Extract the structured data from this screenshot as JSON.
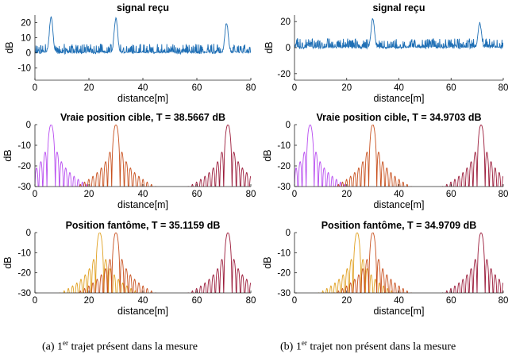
{
  "chart_data": [
    {
      "type": "line",
      "column": 0,
      "row": 0,
      "title": "signal reçu",
      "xlabel": "distance[m]",
      "ylabel": "dB",
      "xlim": [
        0,
        80
      ],
      "ylim": [
        -18,
        25
      ],
      "xticks": [
        0,
        20,
        40,
        60,
        80
      ],
      "yticks": [
        -10,
        0,
        10,
        20
      ],
      "peaks": [
        [
          6,
          24
        ],
        [
          30,
          23
        ],
        [
          71,
          20
        ]
      ],
      "noise_floor": 0,
      "noise_amplitude": 6,
      "series": [
        {
          "color": "#1f6fb5",
          "kind": "signal"
        }
      ]
    },
    {
      "type": "line",
      "column": 1,
      "row": 0,
      "title": "signal reçu",
      "xlabel": "distance[m]",
      "ylabel": "dB",
      "xlim": [
        0,
        80
      ],
      "ylim": [
        -25,
        25
      ],
      "xticks": [
        0,
        20,
        40,
        60,
        80
      ],
      "yticks": [
        -20,
        0,
        20
      ],
      "peaks": [
        [
          30,
          22
        ],
        [
          71,
          19
        ]
      ],
      "noise_floor": 0,
      "noise_amplitude": 7,
      "series": [
        {
          "color": "#1f6fb5",
          "kind": "signal"
        }
      ]
    },
    {
      "type": "line",
      "column": 0,
      "row": 1,
      "title": "Vraie position cible, T = 38.5667 dB",
      "xlabel": "distance[m]",
      "ylabel": "dB",
      "xlim": [
        0,
        80
      ],
      "ylim": [
        -30,
        0
      ],
      "xticks": [
        0,
        20,
        40,
        60,
        80
      ],
      "yticks": [
        -30,
        -20,
        -10,
        0
      ],
      "series": [
        {
          "peak_x": 6,
          "peak_db": 0,
          "color": "#b84cf0"
        },
        {
          "peak_x": 30,
          "peak_db": 0,
          "color": "#c8501e"
        },
        {
          "peak_x": 71.5,
          "peak_db": 0,
          "color": "#9b1b3a"
        }
      ]
    },
    {
      "type": "line",
      "column": 1,
      "row": 1,
      "title": "Vraie position cible, T = 34.9703 dB",
      "xlabel": "distance[m]",
      "ylabel": "dB",
      "xlim": [
        0,
        80
      ],
      "ylim": [
        -30,
        0
      ],
      "xticks": [
        0,
        20,
        40,
        60,
        80
      ],
      "yticks": [
        -30,
        -20,
        -10,
        0
      ],
      "series": [
        {
          "peak_x": 6,
          "peak_db": 0,
          "color": "#b84cf0"
        },
        {
          "peak_x": 30,
          "peak_db": 0,
          "color": "#c8501e"
        },
        {
          "peak_x": 71.5,
          "peak_db": 0,
          "color": "#9b1b3a"
        }
      ]
    },
    {
      "type": "line",
      "column": 0,
      "row": 2,
      "title": "Position fantôme, T = 35.1159 dB",
      "xlabel": "distance[m]",
      "ylabel": "dB",
      "xlim": [
        0,
        80
      ],
      "ylim": [
        -30,
        0
      ],
      "xticks": [
        0,
        20,
        40,
        60,
        80
      ],
      "yticks": [
        -30,
        -20,
        -10,
        0
      ],
      "series": [
        {
          "peak_x": 24,
          "peak_db": 0,
          "color": "#e0a020"
        },
        {
          "peak_x": 30,
          "peak_db": 0,
          "color": "#c8501e"
        },
        {
          "peak_x": 71.5,
          "peak_db": 0,
          "color": "#9b1b3a"
        }
      ]
    },
    {
      "type": "line",
      "column": 1,
      "row": 2,
      "title": "Position fantôme, T = 34.9709 dB",
      "xlabel": "distance[m]",
      "ylabel": "dB",
      "xlim": [
        0,
        80
      ],
      "ylim": [
        -30,
        0
      ],
      "xticks": [
        0,
        20,
        40,
        60,
        80
      ],
      "yticks": [
        -30,
        -20,
        -10,
        0
      ],
      "series": [
        {
          "peak_x": 24,
          "peak_db": 0,
          "color": "#e0a020"
        },
        {
          "peak_x": 30,
          "peak_db": 0,
          "color": "#c8501e"
        },
        {
          "peak_x": 71.5,
          "peak_db": 0,
          "color": "#9b1b3a"
        }
      ]
    }
  ],
  "captions": {
    "a": {
      "prefix": "(a) 1",
      "sup": "er",
      "text": " trajet présent dans la mesure"
    },
    "b": {
      "prefix": "(b) 1",
      "sup": "er",
      "text": " trajet non présent dans la mesure"
    }
  }
}
